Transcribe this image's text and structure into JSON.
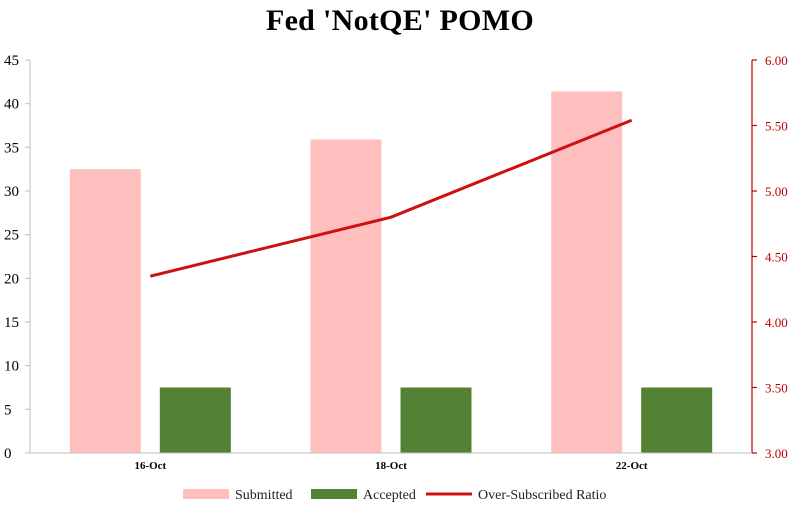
{
  "chart_data": {
    "type": "bar",
    "title": "Fed 'NotQE' POMO",
    "categories": [
      "16-Oct",
      "18-Oct",
      "22-Oct"
    ],
    "series": [
      {
        "name": "Submitted",
        "kind": "bar",
        "axis": "left",
        "color": "#ffbfbf",
        "values": [
          32.5,
          35.9,
          41.4
        ]
      },
      {
        "name": "Accepted",
        "kind": "bar",
        "axis": "left",
        "color": "#548235",
        "values": [
          7.5,
          7.5,
          7.5
        ]
      },
      {
        "name": "Over-Subscribed Ratio",
        "kind": "line",
        "axis": "right",
        "color": "#cc1111",
        "values": [
          4.35,
          4.8,
          5.54
        ]
      }
    ],
    "y_left": {
      "min": 0,
      "max": 45,
      "step": 5,
      "ticks": [
        "0",
        "5",
        "10",
        "15",
        "20",
        "25",
        "30",
        "35",
        "40",
        "45"
      ]
    },
    "y_right": {
      "min": 3.0,
      "max": 6.0,
      "step": 0.5,
      "ticks": [
        "3.00",
        "3.50",
        "4.00",
        "4.50",
        "5.00",
        "5.50",
        "6.00"
      ],
      "color": "#c00000"
    },
    "grid": false,
    "legend": "bottom"
  }
}
